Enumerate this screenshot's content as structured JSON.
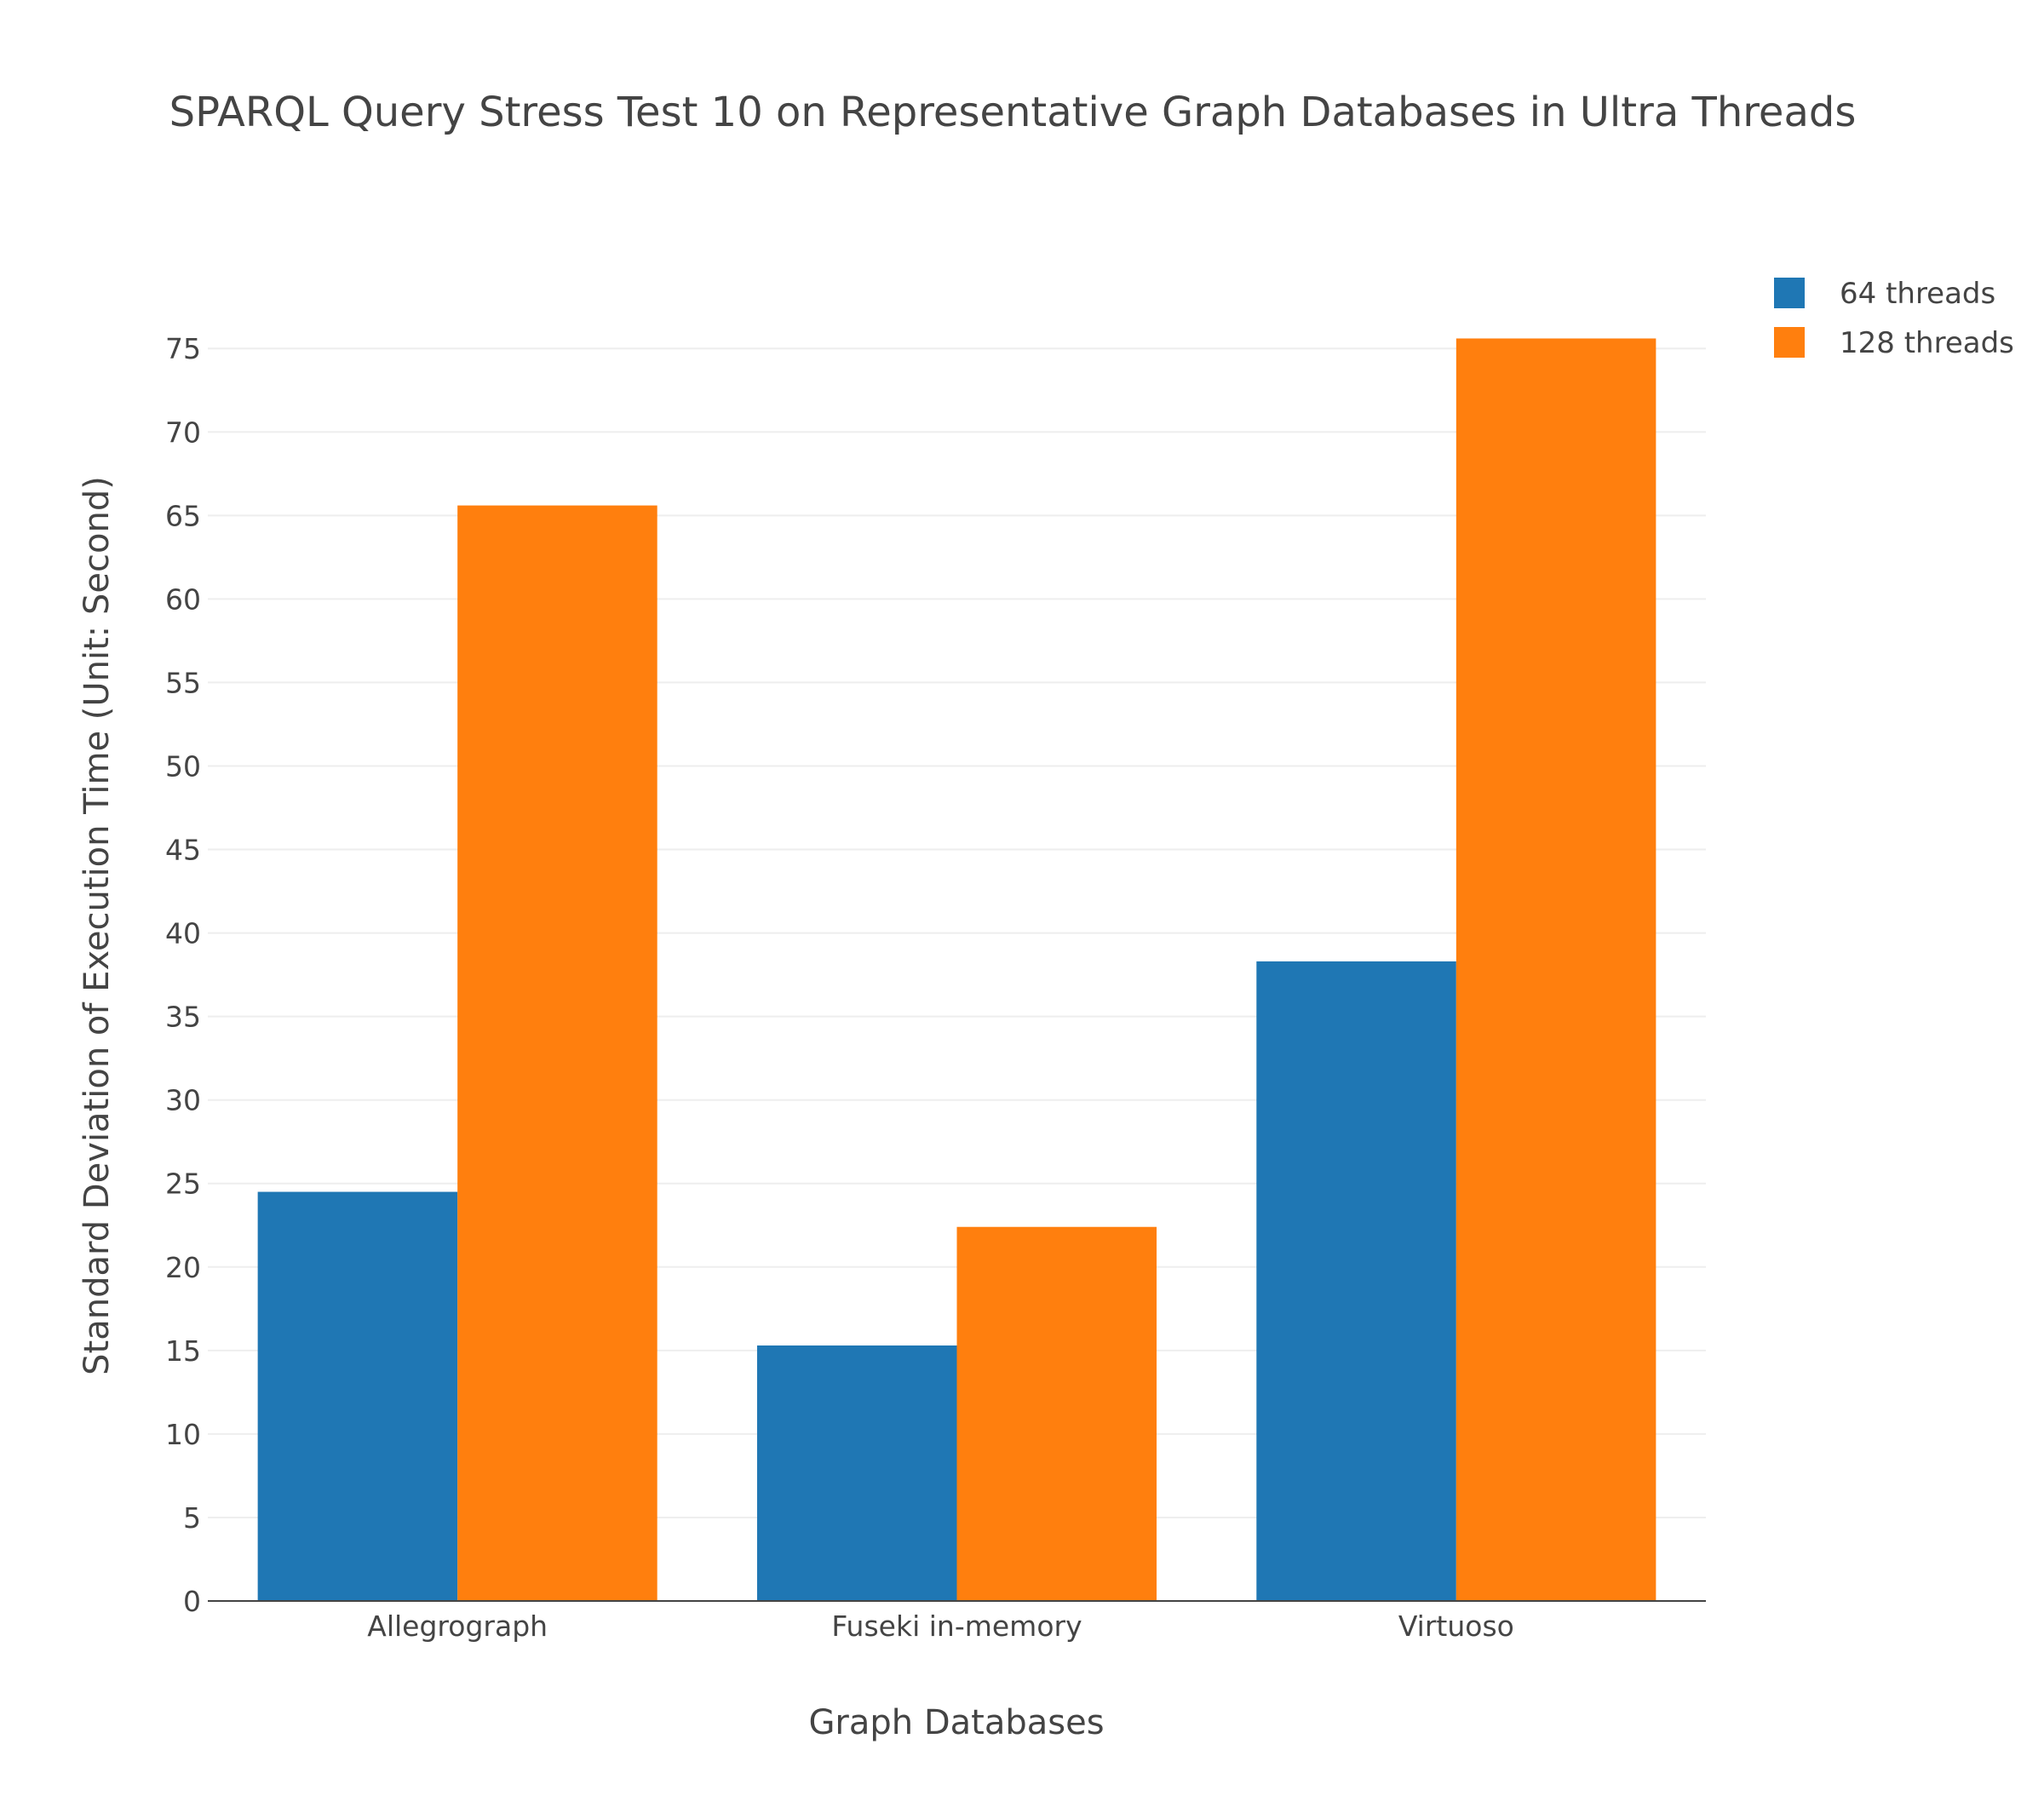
{
  "chart_data": {
    "type": "bar",
    "title": "SPARQL Query Stress Test 10 on Representative Graph Databases in Ultra Threads",
    "xlabel": "Graph Databases",
    "ylabel": "Standard Deviation of Execution Time (Unit: Second)",
    "categories": [
      "Allegrograph",
      "Fuseki in-memory",
      "Virtuoso"
    ],
    "series": [
      {
        "name": "64 threads",
        "color": "#1f77b4",
        "values": [
          24.5,
          15.3,
          38.3
        ]
      },
      {
        "name": "128 threads",
        "color": "#ff7f0e",
        "values": [
          65.6,
          22.4,
          75.6
        ]
      }
    ],
    "ylim": [
      0,
      77
    ],
    "yticks": [
      0,
      5,
      10,
      15,
      20,
      25,
      30,
      35,
      40,
      45,
      50,
      55,
      60,
      65,
      70,
      75
    ],
    "grid": true,
    "legend_position": "top-right"
  }
}
